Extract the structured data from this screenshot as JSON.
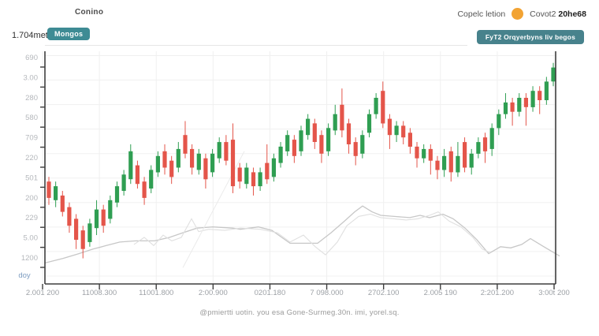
{
  "header": {
    "title": "Conino",
    "price": "1.704met",
    "badge": "Mongos",
    "legend_label": "Copelc letion",
    "legend_value_prefix": "Covot2",
    "legend_value_bold": "20he68",
    "legend_dot_color": "#f2a333",
    "button": "FyT2 Orqyerbyns liv begos"
  },
  "footer": {
    "caption": "@pmiertti uotin. you esa Gone-Surmeg.30n. imi, yorel.sq."
  },
  "chart_data": {
    "type": "candlestick",
    "title": "Conino",
    "grid": true,
    "legend_position": "top-right",
    "value_range": [
      0,
      100
    ],
    "y_tick_labels": [
      "690",
      "3.00",
      "280",
      "580",
      "709",
      "220",
      "501",
      "200",
      "229",
      "5.00",
      "1200"
    ],
    "x_tick_labels": [
      "2.001 200",
      "11008.300",
      "11001.800",
      "2:00.900",
      "0201.180",
      "7 098.000",
      "2702.100",
      "2.005 190",
      "2:201.200",
      "3:00t 200"
    ],
    "corner_label": "doy",
    "colors": {
      "up": "#2f9e52",
      "down": "#e4554a",
      "ma_line": "#c7c7c7",
      "faint_line": "#e0e0e0",
      "diag_line": "#ebebeb",
      "grid": "#f0f0f0",
      "axis": "#3e3e3e",
      "y_label": "#b5b8bc",
      "x_label": "#9da1a6",
      "corner_label": "#7d9cc0"
    },
    "candles_ochl": [
      [
        44,
        37,
        46,
        34
      ],
      [
        36,
        42,
        44,
        33
      ],
      [
        38,
        31,
        40,
        29
      ],
      [
        33,
        25,
        35,
        22
      ],
      [
        28,
        19,
        30,
        15
      ],
      [
        23,
        15,
        25,
        11
      ],
      [
        18,
        26,
        28,
        16
      ],
      [
        24,
        32,
        36,
        21
      ],
      [
        32,
        25,
        34,
        22
      ],
      [
        28,
        36,
        38,
        26
      ],
      [
        35,
        42,
        44,
        33
      ],
      [
        40,
        47,
        49,
        38
      ],
      [
        45,
        57,
        60,
        43
      ],
      [
        51,
        43,
        53,
        41
      ],
      [
        44,
        37,
        46,
        34
      ],
      [
        41,
        49,
        51,
        39
      ],
      [
        48,
        55,
        57,
        46
      ],
      [
        57,
        50,
        60,
        47
      ],
      [
        53,
        46,
        55,
        43
      ],
      [
        50,
        58,
        61,
        48
      ],
      [
        64,
        56,
        70,
        54
      ],
      [
        58,
        50,
        60,
        47
      ],
      [
        49,
        56,
        58,
        47
      ],
      [
        54,
        45,
        56,
        41
      ],
      [
        48,
        56,
        58,
        46
      ],
      [
        54,
        61,
        63,
        52
      ],
      [
        61,
        53,
        64,
        51
      ],
      [
        62,
        42,
        69,
        39
      ],
      [
        50,
        44,
        52,
        41
      ],
      [
        43,
        50,
        52,
        41
      ],
      [
        48,
        42,
        50,
        38
      ],
      [
        42,
        48,
        50,
        40
      ],
      [
        52,
        45,
        60,
        43
      ],
      [
        46,
        54,
        56,
        44
      ],
      [
        52,
        59,
        61,
        50
      ],
      [
        57,
        64,
        66,
        55
      ],
      [
        62,
        55,
        64,
        52
      ],
      [
        57,
        66,
        68,
        55
      ],
      [
        64,
        71,
        73,
        62
      ],
      [
        69,
        61,
        71,
        58
      ],
      [
        64,
        56,
        66,
        52
      ],
      [
        57,
        67,
        69,
        55
      ],
      [
        66,
        73,
        77,
        64
      ],
      [
        77,
        66,
        84,
        63
      ],
      [
        69,
        60,
        71,
        56
      ],
      [
        61,
        55,
        63,
        51
      ],
      [
        56,
        64,
        66,
        54
      ],
      [
        65,
        73,
        75,
        63
      ],
      [
        73,
        80,
        82,
        71
      ],
      [
        83,
        69,
        87,
        67
      ],
      [
        71,
        64,
        73,
        58
      ],
      [
        64,
        68,
        70,
        61
      ],
      [
        68,
        63,
        70,
        60
      ],
      [
        65,
        59,
        67,
        56
      ],
      [
        59,
        54,
        61,
        50
      ],
      [
        54,
        58,
        60,
        52
      ],
      [
        58,
        53,
        60,
        47
      ],
      [
        53,
        49,
        55,
        45
      ],
      [
        49,
        55,
        58,
        46
      ],
      [
        57,
        48,
        59,
        44
      ],
      [
        48,
        55,
        61,
        46
      ],
      [
        61,
        50,
        63,
        48
      ],
      [
        50,
        56,
        58,
        47
      ],
      [
        56,
        61,
        63,
        54
      ],
      [
        63,
        57,
        65,
        52
      ],
      [
        58,
        67,
        69,
        55
      ],
      [
        67,
        73,
        75,
        64
      ],
      [
        73,
        78,
        82,
        71
      ],
      [
        78,
        74,
        80,
        68
      ],
      [
        74,
        80,
        82,
        72
      ],
      [
        80,
        76,
        82,
        68
      ],
      [
        76,
        83,
        85,
        74
      ],
      [
        83,
        79,
        85,
        73
      ],
      [
        79,
        87,
        89,
        77
      ],
      [
        87,
        93,
        95,
        85
      ]
    ],
    "series": [
      {
        "name": "ma-line",
        "type": "line",
        "points": [
          [
            57,
            9
          ],
          [
            80,
            11
          ],
          [
            100,
            13
          ],
          [
            118,
            15
          ],
          [
            135,
            16.5
          ],
          [
            152,
            18
          ],
          [
            172,
            18.5
          ],
          [
            196,
            18.5
          ],
          [
            215,
            20
          ],
          [
            232,
            22
          ],
          [
            250,
            24
          ],
          [
            270,
            24.5
          ],
          [
            295,
            24
          ],
          [
            305,
            23.5
          ],
          [
            328,
            24.5
          ],
          [
            345,
            23
          ],
          [
            368,
            17.5
          ],
          [
            403,
            17.5
          ],
          [
            420,
            22
          ],
          [
            437,
            27
          ],
          [
            450,
            31
          ],
          [
            460,
            33.5
          ],
          [
            472,
            31
          ],
          [
            483,
            29.5
          ],
          [
            500,
            29
          ],
          [
            520,
            28.5
          ],
          [
            533,
            29.5
          ],
          [
            545,
            28.5
          ],
          [
            562,
            30
          ],
          [
            575,
            28
          ],
          [
            590,
            24
          ],
          [
            605,
            19
          ],
          [
            620,
            13
          ],
          [
            635,
            16
          ],
          [
            648,
            15.5
          ],
          [
            662,
            17
          ],
          [
            673,
            19.5
          ],
          [
            690,
            16
          ],
          [
            710,
            12
          ]
        ]
      },
      {
        "name": "faint-line",
        "type": "line",
        "points": [
          [
            170,
            17
          ],
          [
            183,
            20
          ],
          [
            195,
            16.5
          ],
          [
            207,
            21
          ],
          [
            218,
            18.5
          ],
          [
            230,
            20
          ],
          [
            243,
            28
          ],
          [
            252,
            22.5
          ],
          [
            265,
            23.5
          ],
          [
            285,
            23
          ],
          [
            305,
            24
          ],
          [
            330,
            23.5
          ],
          [
            352,
            22
          ],
          [
            368,
            18
          ],
          [
            385,
            21
          ],
          [
            400,
            16
          ],
          [
            413,
            12.5
          ],
          [
            428,
            18
          ],
          [
            440,
            25
          ],
          [
            455,
            29
          ],
          [
            470,
            30
          ],
          [
            483,
            28.5
          ],
          [
            500,
            28
          ],
          [
            515,
            27.5
          ],
          [
            530,
            28
          ],
          [
            545,
            29.5
          ],
          [
            556,
            31
          ],
          [
            570,
            27
          ],
          [
            585,
            24.5
          ],
          [
            600,
            20
          ],
          [
            612,
            15
          ],
          [
            622,
            13.5
          ]
        ]
      },
      {
        "name": "diag-line",
        "type": "line",
        "points": [
          [
            232,
            7
          ],
          [
            310,
            57
          ]
        ]
      }
    ]
  }
}
